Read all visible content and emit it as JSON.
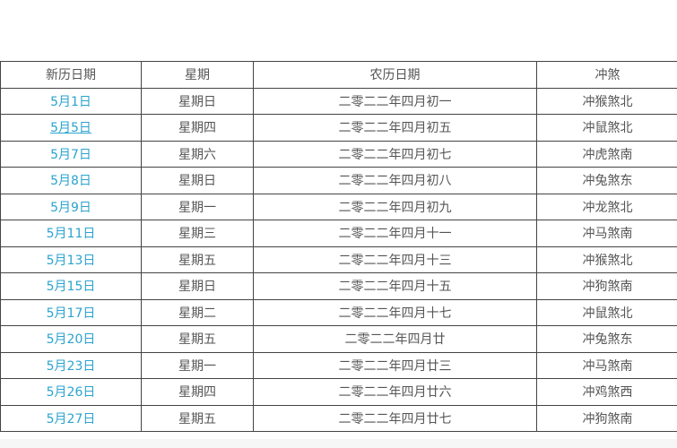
{
  "table": {
    "headers": [
      "新历日期",
      "星期",
      "农历日期",
      "冲煞"
    ],
    "rows": [
      {
        "date": "5月1日",
        "weekday": "星期日",
        "lunar": "二零二二年四月初一",
        "chongsha": "冲猴煞北"
      },
      {
        "date": "5月5日",
        "weekday": "星期四",
        "lunar": "二零二二年四月初五",
        "chongsha": "冲鼠煞北"
      },
      {
        "date": "5月7日",
        "weekday": "星期六",
        "lunar": "二零二二年四月初七",
        "chongsha": "冲虎煞南"
      },
      {
        "date": "5月8日",
        "weekday": "星期日",
        "lunar": "二零二二年四月初八",
        "chongsha": "冲兔煞东"
      },
      {
        "date": "5月9日",
        "weekday": "星期一",
        "lunar": "二零二二年四月初九",
        "chongsha": "冲龙煞北"
      },
      {
        "date": "5月11日",
        "weekday": "星期三",
        "lunar": "二零二二年四月十一",
        "chongsha": "冲马煞南"
      },
      {
        "date": "5月13日",
        "weekday": "星期五",
        "lunar": "二零二二年四月十三",
        "chongsha": "冲猴煞北"
      },
      {
        "date": "5月15日",
        "weekday": "星期日",
        "lunar": "二零二二年四月十五",
        "chongsha": "冲狗煞南"
      },
      {
        "date": "5月17日",
        "weekday": "星期二",
        "lunar": "二零二二年四月十七",
        "chongsha": "冲鼠煞北"
      },
      {
        "date": "5月20日",
        "weekday": "星期五",
        "lunar": "二零二二年四月廿",
        "chongsha": "冲兔煞东"
      },
      {
        "date": "5月23日",
        "weekday": "星期一",
        "lunar": "二零二二年四月廿三",
        "chongsha": "冲马煞南"
      },
      {
        "date": "5月26日",
        "weekday": "星期四",
        "lunar": "二零二二年四月廿六",
        "chongsha": "冲鸡煞西"
      },
      {
        "date": "5月27日",
        "weekday": "星期五",
        "lunar": "二零二二年四月廿七",
        "chongsha": "冲狗煞南"
      }
    ]
  },
  "colors": {
    "link": "#2ba3cf",
    "text": "#555555",
    "border": "#444444"
  }
}
